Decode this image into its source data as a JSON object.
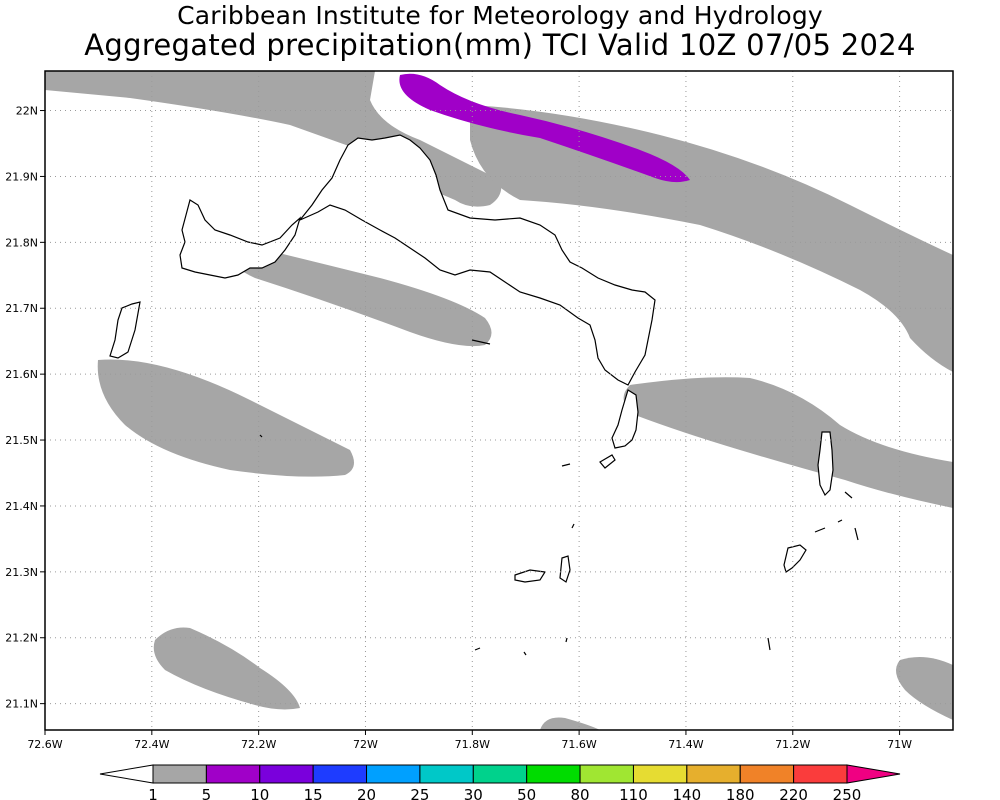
{
  "title": {
    "line1": "Caribbean Institute for Meteorology and Hydrology",
    "line2": "Aggregated precipitation(mm) TCI Valid 10Z 07/05 2024"
  },
  "map": {
    "lon_range": [
      -72.6,
      -70.9
    ],
    "lat_range": [
      21.06,
      22.06
    ],
    "lon_ticks": [
      {
        "value": -72.6,
        "label": "72.6W"
      },
      {
        "value": -72.4,
        "label": "72.4W"
      },
      {
        "value": -72.2,
        "label": "72.2W"
      },
      {
        "value": -72.0,
        "label": "72W"
      },
      {
        "value": -71.8,
        "label": "71.8W"
      },
      {
        "value": -71.6,
        "label": "71.6W"
      },
      {
        "value": -71.4,
        "label": "71.4W"
      },
      {
        "value": -71.2,
        "label": "71.2W"
      },
      {
        "value": -71.0,
        "label": "71W"
      }
    ],
    "lat_ticks": [
      {
        "value": 22.0,
        "label": "22N"
      },
      {
        "value": 21.9,
        "label": "21.9N"
      },
      {
        "value": 21.8,
        "label": "21.8N"
      },
      {
        "value": 21.7,
        "label": "21.7N"
      },
      {
        "value": 21.6,
        "label": "21.6N"
      },
      {
        "value": 21.5,
        "label": "21.5N"
      },
      {
        "value": 21.4,
        "label": "21.4N"
      },
      {
        "value": 21.3,
        "label": "21.3N"
      },
      {
        "value": 21.2,
        "label": "21.2N"
      },
      {
        "value": 21.1,
        "label": "21.1N"
      }
    ],
    "grid": "dotted",
    "land_outline_color": "#000000",
    "rain_band_color": "#a6a6a6",
    "heavy_band_color": "#a000c8"
  },
  "colorbar": {
    "labels": [
      "1",
      "5",
      "10",
      "15",
      "20",
      "25",
      "30",
      "50",
      "80",
      "110",
      "140",
      "180",
      "220",
      "250"
    ],
    "colors": [
      "#ffffff",
      "#a6a6a6",
      "#a000c8",
      "#7a00dc",
      "#1e3cff",
      "#00a0ff",
      "#00c8c8",
      "#00d28c",
      "#00dc00",
      "#a0e632",
      "#e6dc32",
      "#e6af2d",
      "#f08228",
      "#fa3c3c",
      "#f00082"
    ]
  }
}
